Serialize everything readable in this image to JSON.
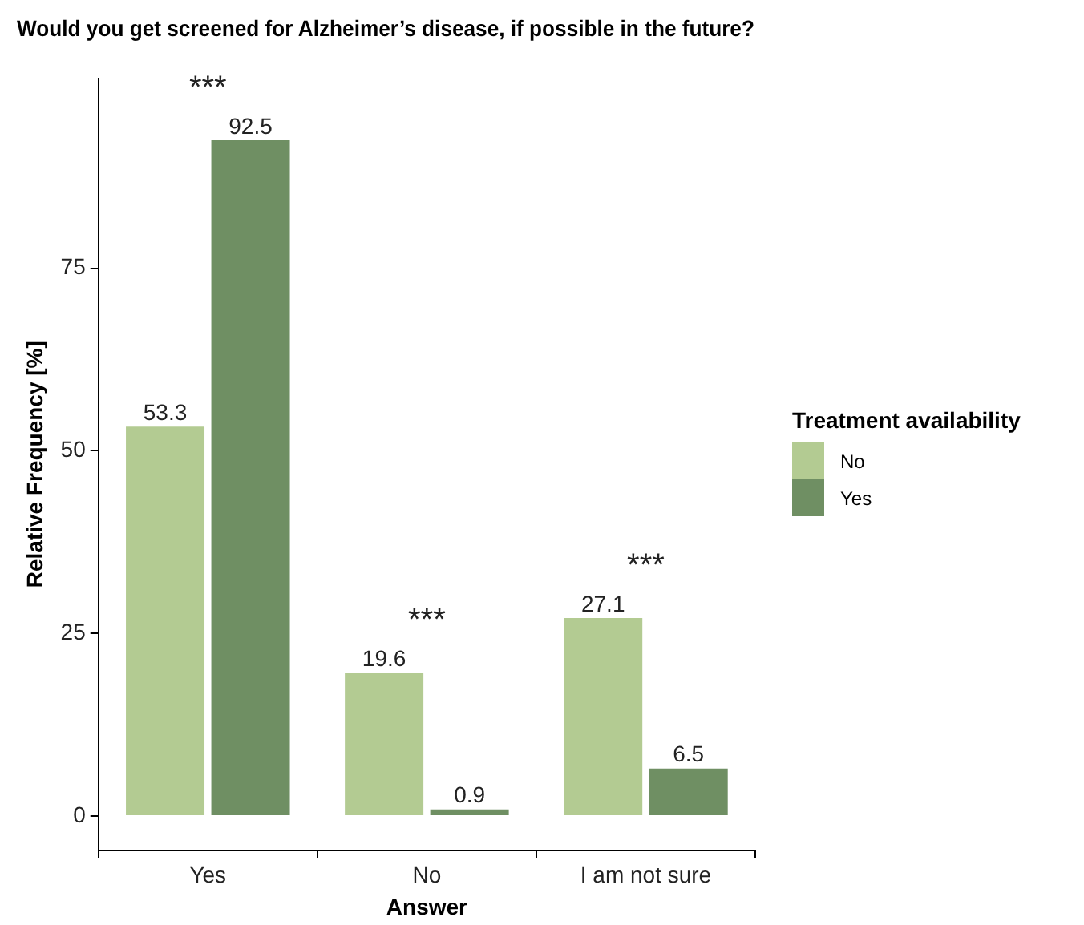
{
  "chart_data": {
    "type": "bar",
    "title": "Would you get screened for Alzheimer’s disease, if possible in the future?",
    "xlabel": "Answer",
    "ylabel": "Relative Frequency [%]",
    "legend_title": "Treatment availability",
    "categories": [
      "Yes",
      "No",
      "I am not sure"
    ],
    "series": [
      {
        "name": "No",
        "color": "#b3cb92",
        "values": [
          53.3,
          19.6,
          27.1
        ]
      },
      {
        "name": "Yes",
        "color": "#6f8f63",
        "values": [
          92.5,
          0.9,
          6.5
        ]
      }
    ],
    "ylim": [
      -4.7,
      101
    ],
    "yticks": [
      0,
      25,
      50,
      75
    ],
    "data_labels": true,
    "legend": "right",
    "annotations": [
      "***",
      "***",
      "***"
    ]
  }
}
